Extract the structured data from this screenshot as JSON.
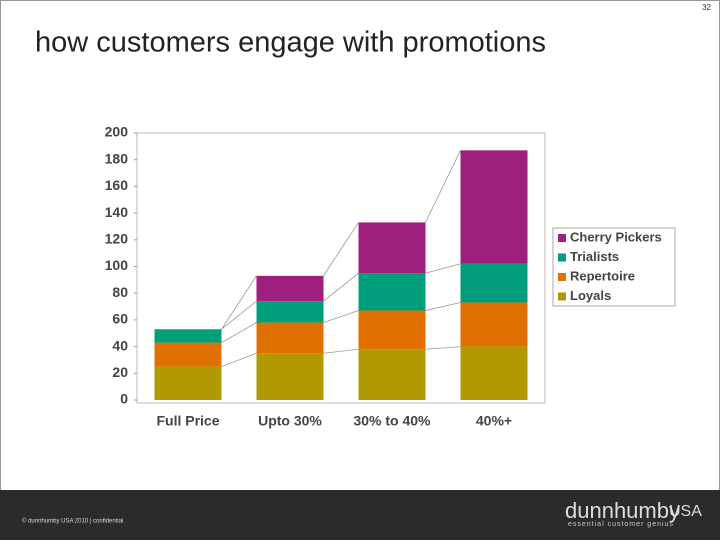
{
  "page_number": "32",
  "slide_title": "how customers engage with promotions",
  "footer": "© dunnhumby USA 2010 | confidential",
  "logo": {
    "name": "dunnhumby",
    "suffix": "USA",
    "tagline": "essential customer genius"
  },
  "chart_data": {
    "type": "stacked_bar",
    "categories": [
      "Full Price",
      "Upto 30%",
      "30% to 40%",
      "40%+"
    ],
    "series": [
      {
        "name": "Loyals",
        "color": "#b09a00",
        "values": [
          25,
          35,
          38,
          40
        ]
      },
      {
        "name": "Repertoire",
        "color": "#e07000",
        "values": [
          18,
          23,
          29,
          33
        ]
      },
      {
        "name": "Trialists",
        "color": "#009e7a",
        "values": [
          10,
          16,
          28,
          29
        ]
      },
      {
        "name": "Cherry Pickers",
        "color": "#9e1f7e",
        "values": [
          0,
          19,
          38,
          85
        ]
      }
    ],
    "ylim": [
      0,
      200
    ],
    "yticks": [
      0,
      20,
      40,
      60,
      80,
      100,
      120,
      140,
      160,
      180,
      200
    ],
    "legend": "right",
    "grid": false
  }
}
